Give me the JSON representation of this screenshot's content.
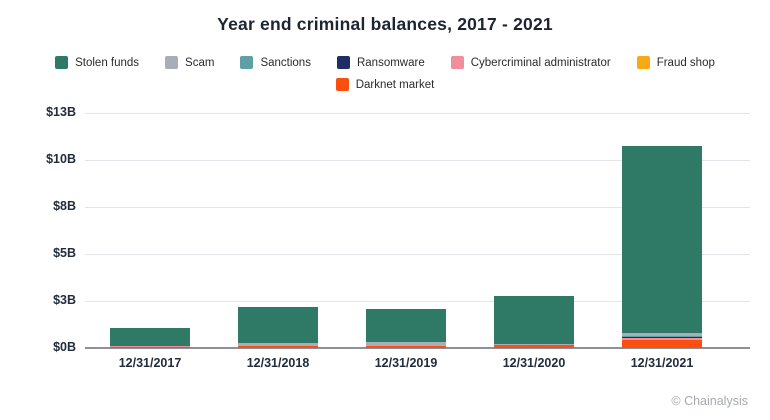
{
  "title": "Year end criminal balances, 2017 - 2021",
  "footer": {
    "credit": "© Chainalysis"
  },
  "legend": {
    "rows": [
      [
        "Stolen funds",
        "Scam",
        "Sanctions",
        "Ransomware",
        "Cybercriminal administrator",
        "Fraud shop"
      ],
      [
        "Darknet market"
      ]
    ]
  },
  "chart_data": {
    "type": "bar",
    "stacked": true,
    "title": "Year end criminal balances, 2017 - 2021",
    "units": "USD billions",
    "categories": [
      "12/31/2017",
      "12/31/2018",
      "12/31/2019",
      "12/31/2020",
      "12/31/2021"
    ],
    "series": [
      {
        "name": "Stolen funds",
        "color": "#2e7a66",
        "values": [
          0.97,
          1.96,
          1.78,
          2.53,
          9.94
        ]
      },
      {
        "name": "Scam",
        "color": "#a8aeb8",
        "values": [
          0.0,
          0.12,
          0.12,
          0.03,
          0.17
        ]
      },
      {
        "name": "Sanctions",
        "color": "#5f9fa6",
        "values": [
          0.0,
          0.0,
          0.0,
          0.0,
          0.03
        ]
      },
      {
        "name": "Ransomware",
        "color": "#202c64",
        "values": [
          0.0,
          0.0,
          0.0,
          0.0,
          0.08
        ]
      },
      {
        "name": "Cybercriminal administrator",
        "color": "#f08e9b",
        "values": [
          0.05,
          0.0,
          0.0,
          0.0,
          0.02
        ]
      },
      {
        "name": "Fraud shop",
        "color": "#f9a918",
        "values": [
          0.0,
          0.0,
          0.05,
          0.0,
          0.04
        ]
      },
      {
        "name": "Darknet market",
        "color": "#fa4f0e",
        "values": [
          0.04,
          0.12,
          0.13,
          0.18,
          0.45
        ]
      }
    ],
    "stack_order_bottom_to_top": [
      "Darknet market",
      "Fraud shop",
      "Cybercriminal administrator",
      "Ransomware",
      "Sanctions",
      "Scam",
      "Stolen funds"
    ],
    "totals": [
      1.06,
      2.2,
      2.08,
      2.74,
      10.73
    ],
    "xlabel": "",
    "ylabel": "",
    "ylim": [
      0,
      12.5
    ],
    "y_ticks": {
      "values": [
        0,
        2.5,
        5,
        7.5,
        10,
        12.5
      ],
      "labels": [
        "$0B",
        "$3B",
        "$5B",
        "$8B",
        "$10B",
        "$13B"
      ]
    },
    "grid": "horizontal",
    "legend_position": "top"
  }
}
